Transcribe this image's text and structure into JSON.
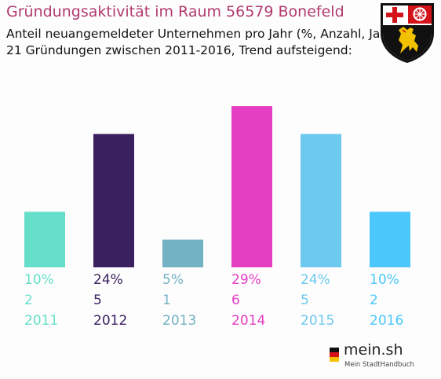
{
  "title": "Gründungsaktivität im Raum 56579 Bonefeld",
  "subtitle_line1": "Anteil neuangemeldeter Unternehmen pro Jahr (%, Anzahl, Jahr)",
  "subtitle_line2": "21 Gründungen zwischen 2011-2016, Trend aufsteigend:",
  "logo": {
    "text": "mein.sh",
    "tagline": "Mein StadtHandbuch"
  },
  "chart_data": {
    "type": "bar",
    "categories": [
      "2011",
      "2012",
      "2013",
      "2014",
      "2015",
      "2016"
    ],
    "values": [
      10,
      24,
      5,
      29,
      24,
      10
    ],
    "value_labels": [
      "10%",
      "24%",
      "5%",
      "29%",
      "24%",
      "10%"
    ],
    "counts": [
      "2",
      "5",
      "1",
      "6",
      "5",
      "2"
    ],
    "colors": [
      "#66dfca",
      "#3b2060",
      "#72b2c2",
      "#e43fc3",
      "#6dc9ef",
      "#4bc7fc"
    ],
    "ylim": [
      0,
      29
    ]
  }
}
